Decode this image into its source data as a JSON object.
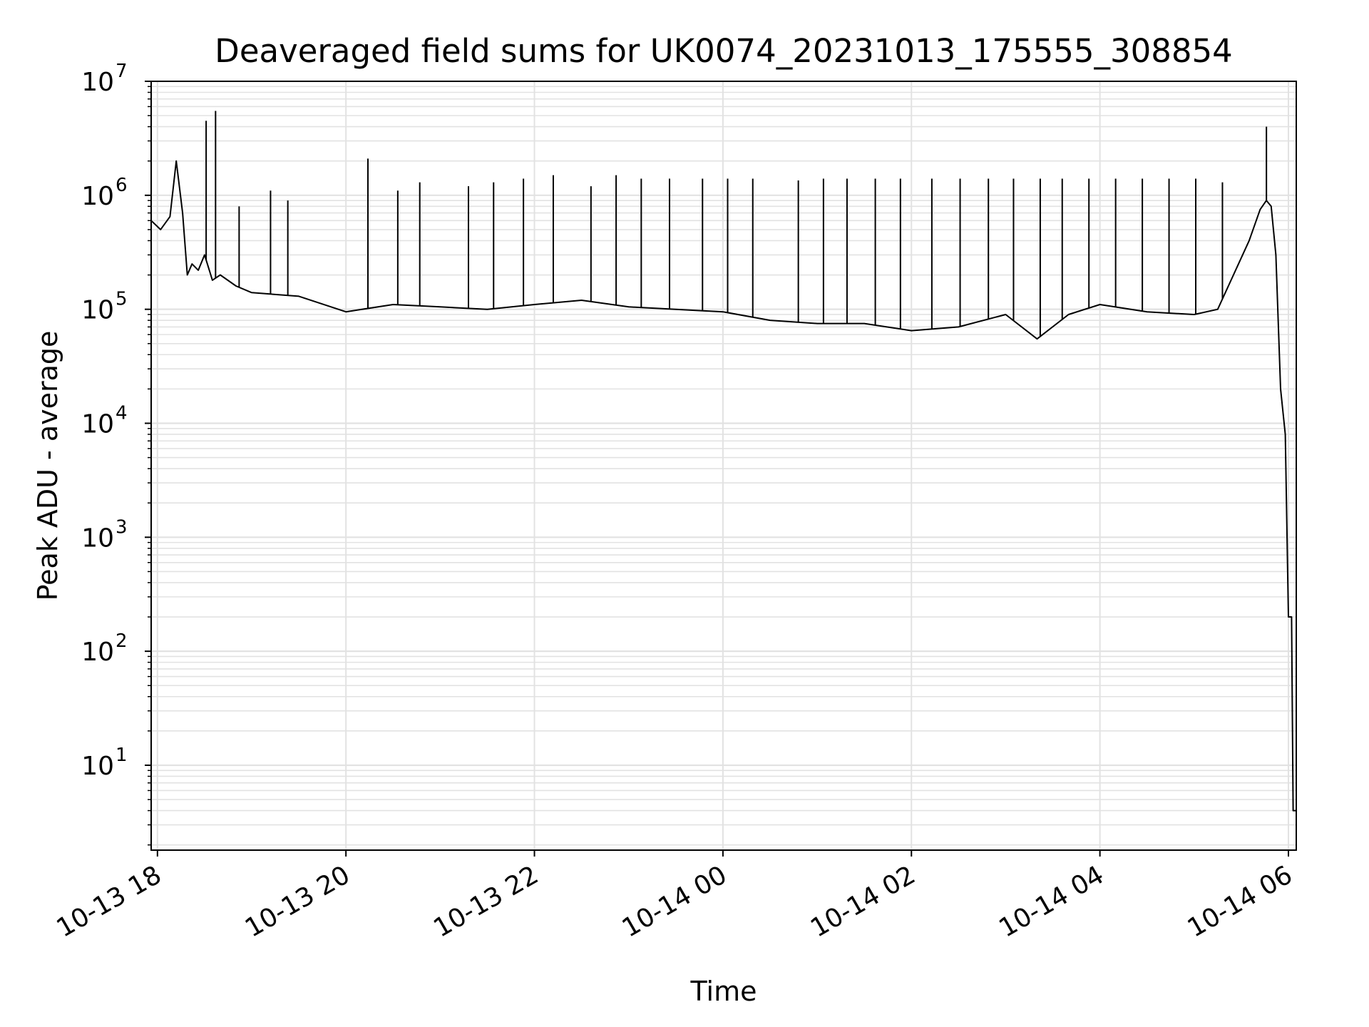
{
  "chart_data": {
    "type": "line",
    "title": "Deaveraged field sums for UK0074_20231013_175555_308854",
    "xlabel": "Time",
    "ylabel": "Peak ADU - average",
    "yscale": "log",
    "ylim": [
      1.8,
      10000000
    ],
    "xlim": [
      "2023-10-13 17:56",
      "2023-10-14 06:05"
    ],
    "grid": true,
    "x_ticks": [
      "10-13 18",
      "10-13 20",
      "10-13 22",
      "10-14 00",
      "10-14 02",
      "10-14 04",
      "10-14 06"
    ],
    "y_ticks": [
      {
        "value": 10,
        "base": "10",
        "exp": "1"
      },
      {
        "value": 100,
        "base": "10",
        "exp": "2"
      },
      {
        "value": 1000,
        "base": "10",
        "exp": "3"
      },
      {
        "value": 10000,
        "base": "10",
        "exp": "4"
      },
      {
        "value": 100000,
        "base": "10",
        "exp": "5"
      },
      {
        "value": 1000000,
        "base": "10",
        "exp": "6"
      },
      {
        "value": 10000000,
        "base": "10",
        "exp": "7"
      }
    ],
    "series": [
      {
        "color": "#000000",
        "x": [
          "2023-10-13 17:56",
          "2023-10-13 18:02",
          "2023-10-13 18:08",
          "2023-10-13 18:12",
          "2023-10-13 18:16",
          "2023-10-13 18:19",
          "2023-10-13 18:22",
          "2023-10-13 18:26",
          "2023-10-13 18:30",
          "2023-10-13 18:35",
          "2023-10-13 18:40",
          "2023-10-13 18:50",
          "2023-10-13 19:00",
          "2023-10-13 19:30",
          "2023-10-13 20:00",
          "2023-10-13 20:30",
          "2023-10-13 21:00",
          "2023-10-13 21:30",
          "2023-10-13 22:00",
          "2023-10-13 22:30",
          "2023-10-13 23:00",
          "2023-10-13 23:30",
          "2023-10-14 00:00",
          "2023-10-14 00:30",
          "2023-10-14 01:00",
          "2023-10-14 01:30",
          "2023-10-14 02:00",
          "2023-10-14 02:30",
          "2023-10-14 03:00",
          "2023-10-14 03:20",
          "2023-10-14 03:40",
          "2023-10-14 04:00",
          "2023-10-14 04:30",
          "2023-10-14 05:00",
          "2023-10-14 05:15",
          "2023-10-14 05:25",
          "2023-10-14 05:35",
          "2023-10-14 05:42",
          "2023-10-14 05:46",
          "2023-10-14 05:49",
          "2023-10-14 05:52",
          "2023-10-14 05:55",
          "2023-10-14 05:58",
          "2023-10-14 06:00",
          "2023-10-14 06:02",
          "2023-10-14 06:03",
          "2023-10-14 06:05"
        ],
        "y": [
          600000,
          500000,
          650000,
          2000000,
          700000,
          200000,
          250000,
          220000,
          300000,
          180000,
          200000,
          160000,
          140000,
          130000,
          95000,
          110000,
          105000,
          100000,
          110000,
          120000,
          105000,
          100000,
          95000,
          80000,
          75000,
          75000,
          65000,
          70000,
          90000,
          55000,
          90000,
          110000,
          95000,
          90000,
          100000,
          200000,
          400000,
          750000,
          900000,
          800000,
          300000,
          20000,
          8000,
          200,
          200,
          4,
          4
        ]
      }
    ],
    "spike_series": {
      "x": [
        "2023-10-13 18:31",
        "2023-10-13 18:37",
        "2023-10-13 18:52",
        "2023-10-13 19:12",
        "2023-10-13 19:23",
        "2023-10-13 20:14",
        "2023-10-13 20:33",
        "2023-10-13 20:47",
        "2023-10-13 21:18",
        "2023-10-13 21:34",
        "2023-10-13 21:53",
        "2023-10-13 22:12",
        "2023-10-13 22:36",
        "2023-10-13 22:52",
        "2023-10-13 23:08",
        "2023-10-13 23:26",
        "2023-10-13 23:47",
        "2023-10-14 00:03",
        "2023-10-14 00:19",
        "2023-10-14 00:48",
        "2023-10-14 01:04",
        "2023-10-14 01:19",
        "2023-10-14 01:37",
        "2023-10-14 01:53",
        "2023-10-14 02:13",
        "2023-10-14 02:31",
        "2023-10-14 02:49",
        "2023-10-14 03:05",
        "2023-10-14 03:22",
        "2023-10-14 03:36",
        "2023-10-14 03:53",
        "2023-10-14 04:10",
        "2023-10-14 04:27",
        "2023-10-14 04:44",
        "2023-10-14 05:01",
        "2023-10-14 05:18",
        "2023-10-14 05:46"
      ],
      "y": [
        4500000,
        5500000,
        800000,
        1100000,
        900000,
        2100000,
        1100000,
        1300000,
        1200000,
        1300000,
        1400000,
        1500000,
        1200000,
        1500000,
        1400000,
        1400000,
        1400000,
        1400000,
        1400000,
        1350000,
        1400000,
        1400000,
        1400000,
        1400000,
        1400000,
        1400000,
        1400000,
        1400000,
        1400000,
        1400000,
        1400000,
        1400000,
        1400000,
        1400000,
        1400000,
        1300000,
        4000000
      ]
    }
  }
}
